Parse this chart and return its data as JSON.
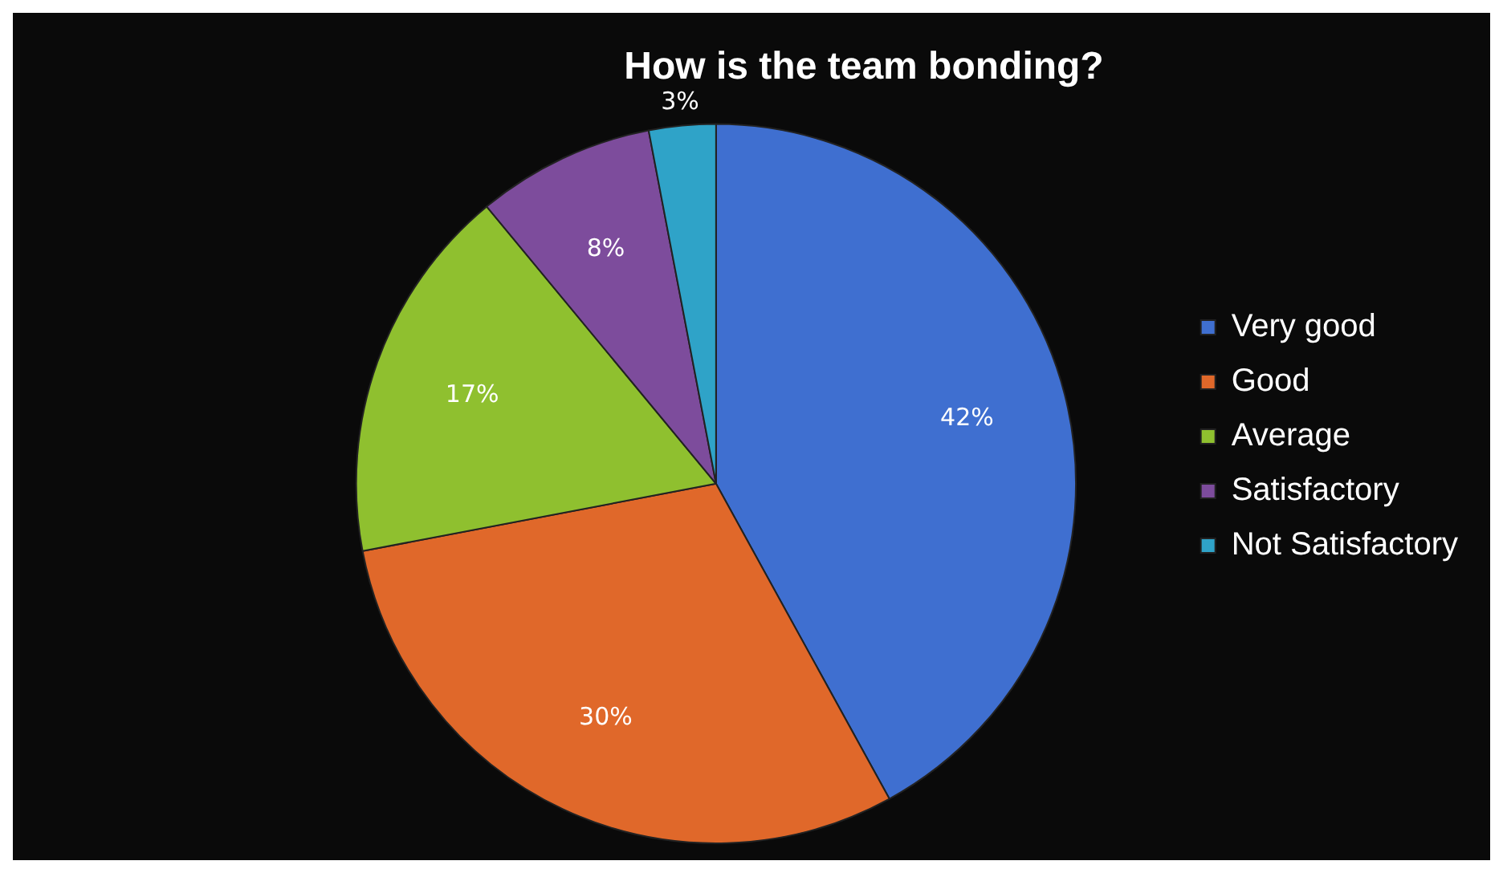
{
  "chart_data": {
    "type": "pie",
    "title": "How is the team bonding?",
    "categories": [
      "Very good",
      "Good",
      "Average",
      "Satisfactory",
      "Not Satisfactory"
    ],
    "values": [
      42,
      30,
      17,
      8,
      3
    ],
    "value_labels": [
      "42%",
      "30%",
      "17%",
      "8%",
      "3%"
    ],
    "colors": [
      "#3f6fd0",
      "#e0682a",
      "#8fc02f",
      "#7d4c9c",
      "#2fa3c8"
    ],
    "legend": "right"
  }
}
